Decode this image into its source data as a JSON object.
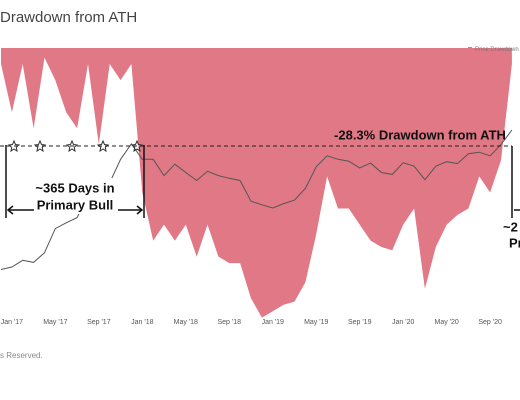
{
  "chart_data": {
    "type": "area",
    "title": "Drawdown from ATH",
    "categories": [
      null,
      "Jan '17",
      null,
      null,
      null,
      "May '17",
      null,
      null,
      null,
      "Sep '17",
      null,
      null,
      null,
      "Jan '18",
      null,
      null,
      null,
      "May '18",
      null,
      null,
      null,
      "Sep '18",
      null,
      null,
      null,
      "Jan '19",
      null,
      null,
      null,
      "May '19",
      null,
      null,
      null,
      "Sep '19",
      null,
      null,
      null,
      "Jan '20",
      null,
      null,
      null,
      "May '20",
      null,
      null,
      null,
      "Sep '20",
      null,
      null
    ],
    "series": [
      {
        "name": "Price Drawdown",
        "color": "#e07886",
        "values": [
          -5,
          -20,
          -5,
          -25,
          -3,
          -10,
          -20,
          -25,
          -5,
          -30,
          -5,
          -10,
          -5,
          -45,
          -60,
          -55,
          -60,
          -55,
          -65,
          -55,
          -65,
          -67,
          -67,
          -78,
          -84,
          -82,
          -80,
          -79,
          -73,
          -58,
          -40,
          -50,
          -50,
          -55,
          -60,
          -62,
          -63,
          -55,
          -50,
          -75,
          -62,
          -55,
          -52,
          -50,
          -40,
          -45,
          -35,
          -5
        ]
      },
      {
        "color": "#555555",
        "axis": "y2",
        "values": [
          900,
          950,
          1100,
          1050,
          1300,
          2200,
          2500,
          2800,
          4500,
          4300,
          6000,
          10000,
          14000,
          10000,
          10000,
          7000,
          9000,
          7500,
          6300,
          7700,
          7000,
          6600,
          6300,
          4000,
          3700,
          3450,
          3800,
          4100,
          5300,
          8500,
          10800,
          10000,
          9600,
          8300,
          9200,
          7500,
          7200,
          9300,
          8600,
          6400,
          8600,
          9500,
          9100,
          11300,
          11700,
          10800,
          13800,
          19000
        ]
      }
    ],
    "ylim": [
      -100,
      0
    ],
    "y2lim": [
      100,
      100000
    ],
    "y2log": true,
    "annotations": [
      "-28.3% Drawdown from ATH",
      "~365 Days in",
      "Primary Bull",
      "~2",
      "Pr"
    ],
    "footer": "s Reserved."
  }
}
